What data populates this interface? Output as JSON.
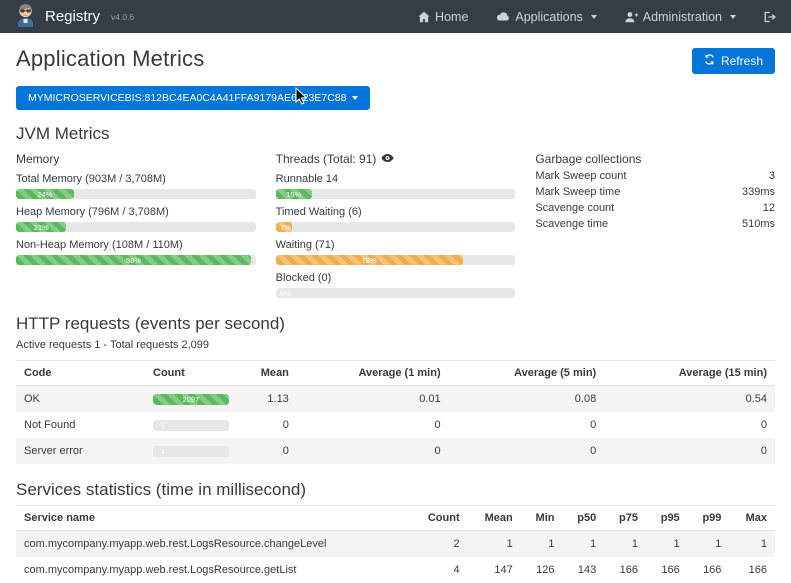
{
  "colors": {
    "navbar_bg": "#353d47",
    "primary": "#0275d8",
    "green": "#5cb85c",
    "orange": "#f0ad4e",
    "stripe_row": "#f4f4f4"
  },
  "navbar": {
    "brand": "Registry",
    "version": "v4.0.6",
    "items": [
      {
        "label": "Home",
        "icon": "house"
      },
      {
        "label": "Applications",
        "icon": "cloud"
      },
      {
        "label": "Administration",
        "icon": "user-plus"
      }
    ],
    "logout_icon": "sign-out"
  },
  "page": {
    "title": "Application Metrics",
    "refresh_label": "Refresh",
    "instance_selector": "MYMICROSERVICEBIS:812BC4EA0C4A41FFA9179AE6023E7C88"
  },
  "jvm": {
    "heading": "JVM Metrics",
    "memory": {
      "title": "Memory",
      "bars": [
        {
          "label": "Total Memory (903M / 3,708M)",
          "percent": 24,
          "text": "24%"
        },
        {
          "label": "Heap Memory (796M / 3,708M)",
          "percent": 21,
          "text": "21%"
        },
        {
          "label": "Non-Heap Memory (108M / 110M)",
          "percent": 98,
          "text": "98%"
        }
      ]
    },
    "threads": {
      "title": "Threads (Total: 91)",
      "bars": [
        {
          "label": "Runnable 14",
          "percent": 15,
          "text": "15%",
          "color": "green"
        },
        {
          "label": "Timed Waiting (6)",
          "percent": 7,
          "text": "7%",
          "color": "orange"
        },
        {
          "label": "Waiting (71)",
          "percent": 78,
          "text": "78%",
          "color": "orange"
        },
        {
          "label": "Blocked (0)",
          "percent": 0,
          "text": "0%",
          "color": "gray"
        }
      ]
    },
    "gc": {
      "title": "Garbage collections",
      "rows": [
        {
          "label": "Mark Sweep count",
          "value": "3"
        },
        {
          "label": "Mark Sweep time",
          "value": "339ms"
        },
        {
          "label": "Scavenge count",
          "value": "12"
        },
        {
          "label": "Scavenge time",
          "value": "510ms"
        }
      ]
    }
  },
  "http": {
    "heading": "HTTP requests (events per second)",
    "subtitle": "Active requests 1 - Total requests 2,099",
    "columns": [
      "Code",
      "Count",
      "Mean",
      "Average (1 min)",
      "Average (5 min)",
      "Average (15 min)"
    ],
    "rows": [
      {
        "code": "OK",
        "count_label": "2097",
        "bar_percent": 100,
        "mean": "1.13",
        "avg1": "0.01",
        "avg5": "0.08",
        "avg15": "0.54"
      },
      {
        "code": "Not Found",
        "count_label": "1",
        "bar_percent": 0,
        "mean": "0",
        "avg1": "0",
        "avg5": "0",
        "avg15": "0"
      },
      {
        "code": "Server error",
        "count_label": "1",
        "bar_percent": 0,
        "mean": "0",
        "avg1": "0",
        "avg5": "0",
        "avg15": "0"
      }
    ]
  },
  "services": {
    "heading": "Services statistics (time in millisecond)",
    "columns": [
      "Service name",
      "Count",
      "Mean",
      "Min",
      "p50",
      "p75",
      "p95",
      "p99",
      "Max"
    ],
    "rows": [
      {
        "name": "com.mycompany.myapp.web.rest.LogsResource.changeLevel",
        "values": [
          "2",
          "1",
          "1",
          "1",
          "1",
          "1",
          "1",
          "1"
        ]
      },
      {
        "name": "com.mycompany.myapp.web.rest.LogsResource.getList",
        "values": [
          "4",
          "147",
          "126",
          "143",
          "166",
          "166",
          "166",
          "166"
        ]
      }
    ]
  }
}
